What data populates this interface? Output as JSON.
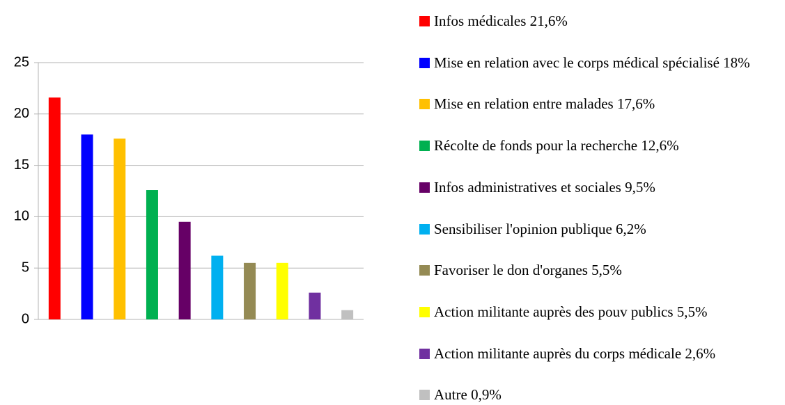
{
  "chart_data": {
    "type": "bar",
    "series": [
      {
        "name": "Infos médicales 21,6%",
        "color": "#ff0000",
        "values": [
          21.6
        ]
      },
      {
        "name": "Mise en relation avec le corps médical spécialisé 18%",
        "color": "#0000ff",
        "values": [
          18
        ]
      },
      {
        "name": "Mise en relation entre malades 17,6%",
        "color": "#ffc000",
        "values": [
          17.6
        ]
      },
      {
        "name": "Récolte de fonds pour la recherche 12,6%",
        "color": "#00b050",
        "values": [
          12.6
        ]
      },
      {
        "name": "Infos administratives et sociales 9,5%",
        "color": "#660066",
        "values": [
          9.5
        ]
      },
      {
        "name": "Sensibiliser l'opinion publique 6,2%",
        "color": "#00b0f0",
        "values": [
          6.2
        ]
      },
      {
        "name": "Favoriser le don d'organes 5,5%",
        "color": "#948a54",
        "values": [
          5.5
        ]
      },
      {
        "name": "Action militante auprès des pouv publics 5,5%",
        "color": "#ffff00",
        "values": [
          5.5
        ]
      },
      {
        "name": "Action militante auprès du corps médicale 2,6%",
        "color": "#7030a0",
        "values": [
          2.6
        ]
      },
      {
        "name": "Autre 0,9%",
        "color": "#c0c0c0",
        "values": [
          0.9
        ]
      }
    ],
    "ylim": [
      0,
      25
    ],
    "yticks": [
      0,
      5,
      10,
      15,
      20,
      25
    ],
    "grid": true,
    "legend": "right"
  }
}
